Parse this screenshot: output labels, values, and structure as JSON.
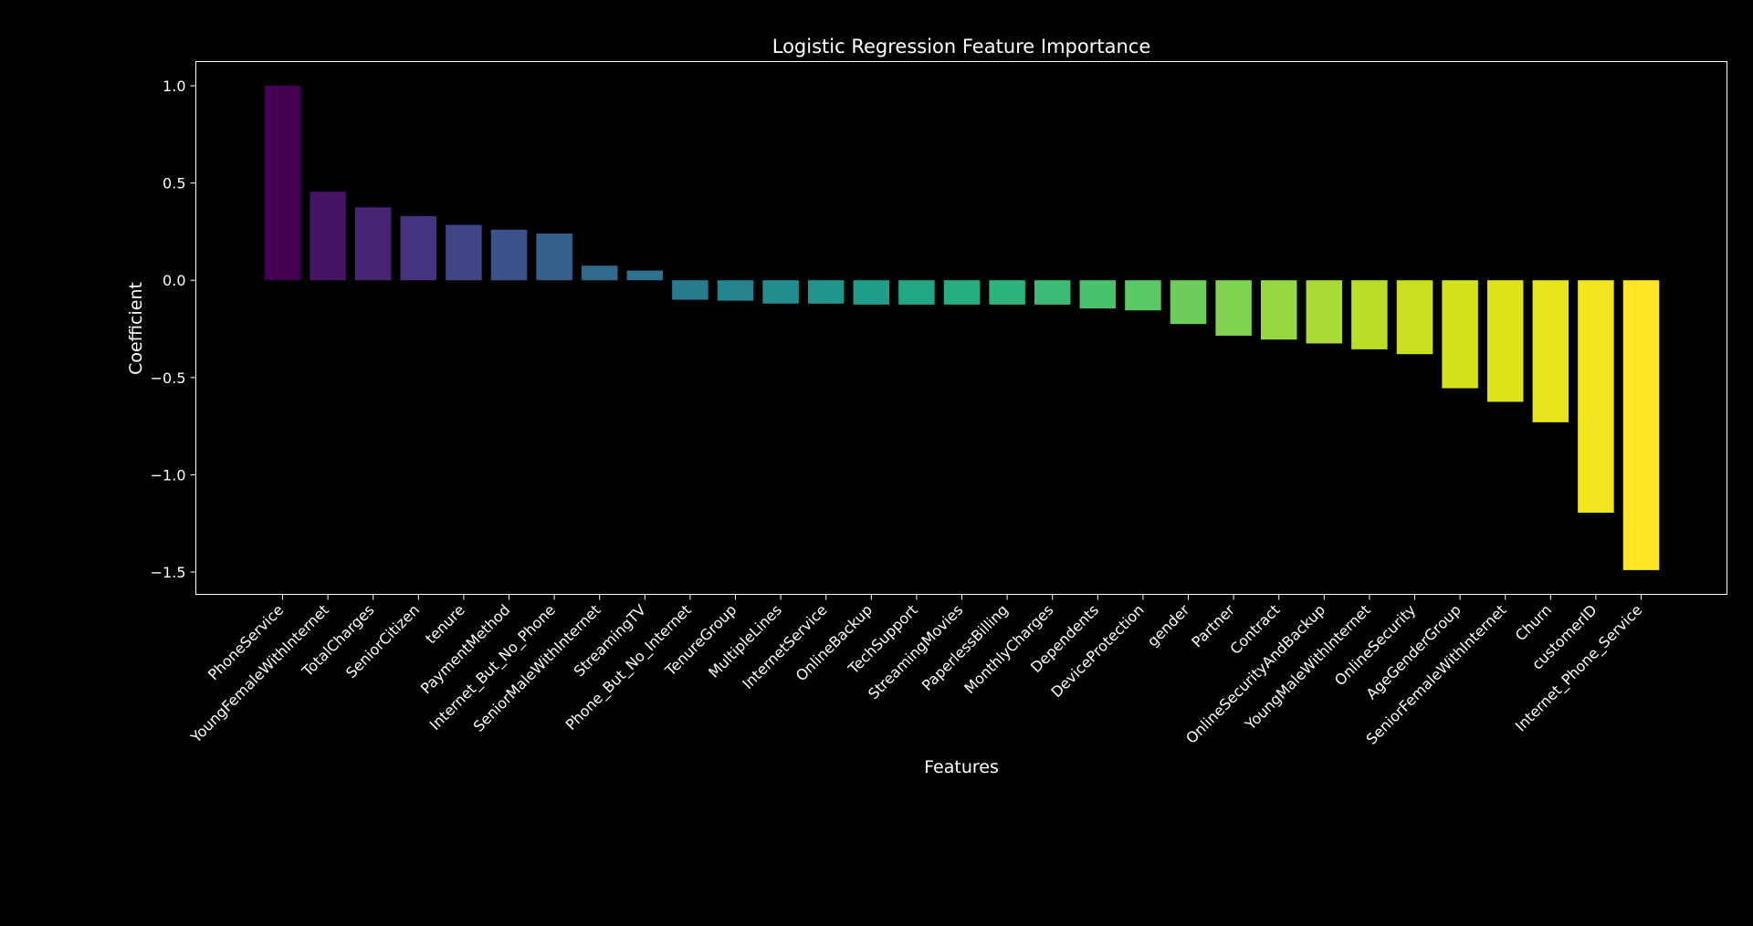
{
  "chart_data": {
    "type": "bar",
    "title": "Logistic Regression Feature Importance",
    "xlabel": "Features",
    "ylabel": "Coefficient",
    "ylim": [
      -1.6,
      1.1
    ],
    "yticks": [
      1.0,
      0.5,
      0.0,
      -0.5,
      -1.0,
      -1.5
    ],
    "ytick_labels": [
      "1.0",
      "0.5",
      "0.0",
      "−0.5",
      "−1.0",
      "−1.5"
    ],
    "grid": false,
    "colormap": "viridis",
    "background": "#000000",
    "foreground": "#ffffff",
    "categories": [
      "PhoneService",
      "YoungFemaleWithInternet",
      "TotalCharges",
      "SeniorCitizen",
      "tenure",
      "PaymentMethod",
      "Internet_But_No_Phone",
      "SeniorMaleWithInternet",
      "StreamingTV",
      "Phone_But_No_Internet",
      "TenureGroup",
      "MultipleLines",
      "InternetService",
      "OnlineBackup",
      "TechSupport",
      "StreamingMovies",
      "PaperlessBilling",
      "MonthlyCharges",
      "Dependents",
      "DeviceProtection",
      "gender",
      "Partner",
      "Contract",
      "OnlineSecurityAndBackup",
      "YoungMaleWithInternet",
      "OnlineSecurity",
      "AgeGenderGroup",
      "SeniorFemaleWithInternet",
      "Churn",
      "customerID",
      "Internet_Phone_Service"
    ],
    "values": [
      1.0,
      0.455,
      0.375,
      0.33,
      0.285,
      0.26,
      0.24,
      0.075,
      0.05,
      -0.1,
      -0.105,
      -0.12,
      -0.12,
      -0.125,
      -0.125,
      -0.125,
      -0.125,
      -0.125,
      -0.145,
      -0.155,
      -0.225,
      -0.285,
      -0.305,
      -0.325,
      -0.355,
      -0.38,
      -0.555,
      -0.625,
      -0.73,
      -1.195,
      -1.49
    ],
    "colors": [
      "#440154",
      "#471365",
      "#482475",
      "#463480",
      "#414487",
      "#3b528b",
      "#355f8d",
      "#306a8e",
      "#2c728e",
      "#287c8e",
      "#25848e",
      "#228d8d",
      "#1f958b",
      "#1f9e89",
      "#22a785",
      "#26ad81",
      "#2eb37c",
      "#3bbb75",
      "#4ac16d",
      "#5ac864",
      "#6ccd5a",
      "#7fd34e",
      "#95d840",
      "#a8db34",
      "#bade28",
      "#c8e020",
      "#d2e21b",
      "#dde318",
      "#e8e419",
      "#f1e51d",
      "#fde725"
    ]
  }
}
